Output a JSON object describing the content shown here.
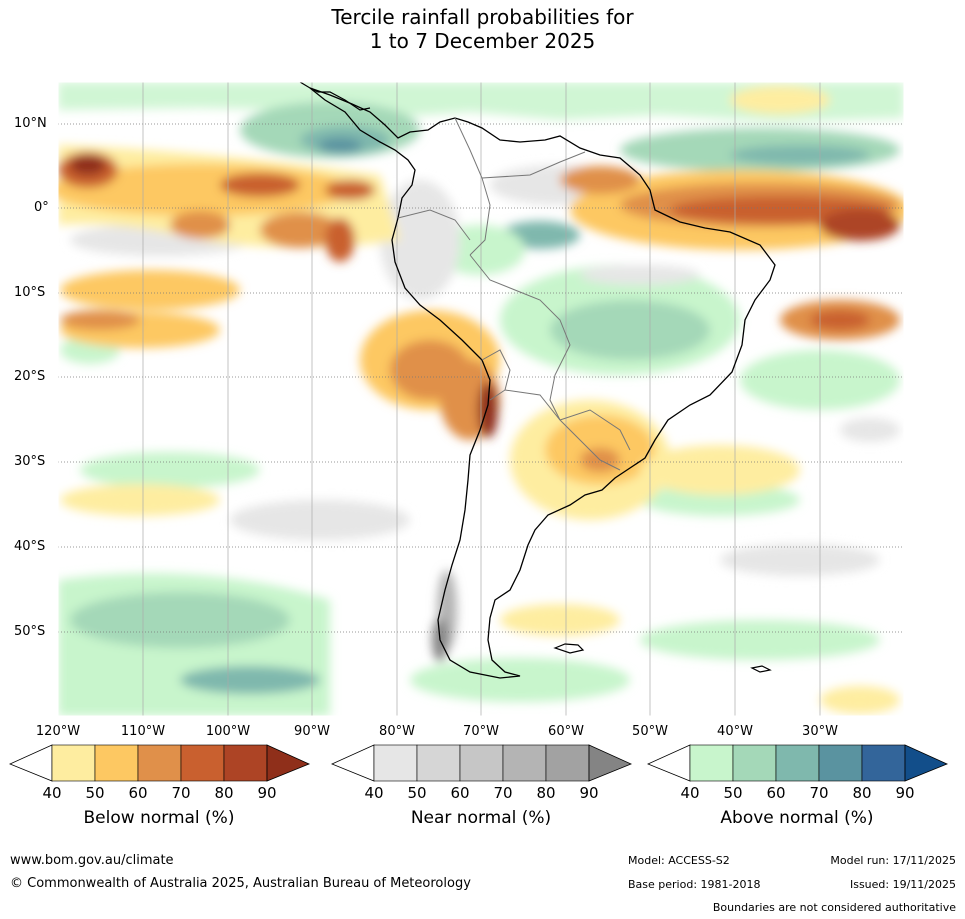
{
  "title_line1": "Tercile rainfall probabilities for",
  "title_line2": "1 to 7 December 2025",
  "lat_labels": [
    "10°N",
    "0°",
    "10°S",
    "20°S",
    "30°S",
    "40°S",
    "50°S"
  ],
  "lon_labels": [
    "120°W",
    "110°W",
    "100°W",
    "90°W",
    "80°W",
    "70°W",
    "60°W",
    "50°W",
    "40°W",
    "30°W"
  ],
  "legend": {
    "below": {
      "title": "Below normal (%)",
      "ticks": [
        "40",
        "50",
        "60",
        "70",
        "80",
        "90"
      ],
      "colors": [
        "#ffffff",
        "#feeda0",
        "#fdc862",
        "#e0904a",
        "#c9602f",
        "#ad4425",
        "#8f2f1a"
      ]
    },
    "near": {
      "title": "Near normal (%)",
      "ticks": [
        "40",
        "50",
        "60",
        "70",
        "80",
        "90"
      ],
      "colors": [
        "#ffffff",
        "#e6e6e6",
        "#d6d6d6",
        "#c6c6c6",
        "#b4b4b4",
        "#a2a2a2",
        "#848484"
      ]
    },
    "above": {
      "title": "Above normal (%)",
      "ticks": [
        "40",
        "50",
        "60",
        "70",
        "80",
        "90"
      ],
      "colors": [
        "#ffffff",
        "#c8f5cc",
        "#a4d8b8",
        "#7fb8ad",
        "#5a93a0",
        "#33659a",
        "#124e8a"
      ]
    }
  },
  "footer": {
    "website": "www.bom.gov.au/climate",
    "copyright": "© Commonwealth of Australia 2025, Australian Bureau of Meteorology",
    "model": "Model: ACCESS-S2",
    "model_run": "Model run: 17/11/2025",
    "base_period": "Base period: 1981-2018",
    "issued": "Issued: 19/11/2025",
    "disclaimer": "Boundaries are not considered authoritative"
  }
}
